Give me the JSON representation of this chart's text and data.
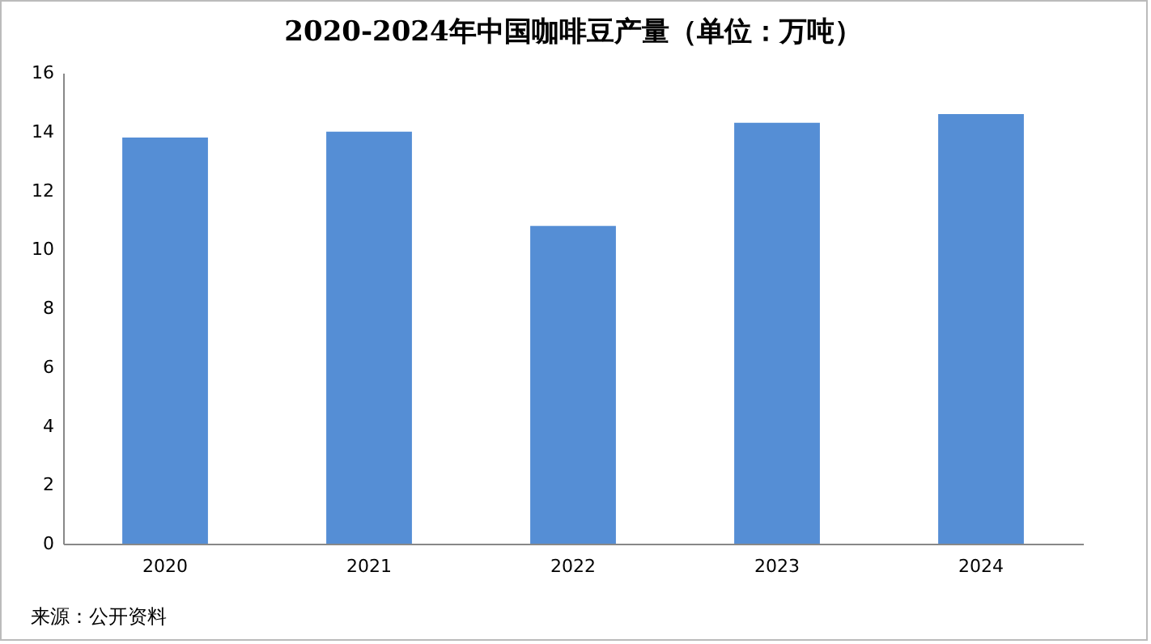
{
  "chart_data": {
    "type": "bar",
    "title": "2020-2024年中国咖啡豆产量（单位：万吨）",
    "categories": [
      "2020",
      "2021",
      "2022",
      "2023",
      "2024"
    ],
    "values": [
      13.8,
      14.0,
      10.8,
      14.3,
      14.6
    ],
    "color": "#558ed5",
    "ylim": [
      0,
      16
    ],
    "yticks": [
      0,
      2,
      4,
      6,
      8,
      10,
      12,
      14,
      16
    ],
    "grid": false,
    "annotations": [
      "来源：公开资料"
    ]
  }
}
